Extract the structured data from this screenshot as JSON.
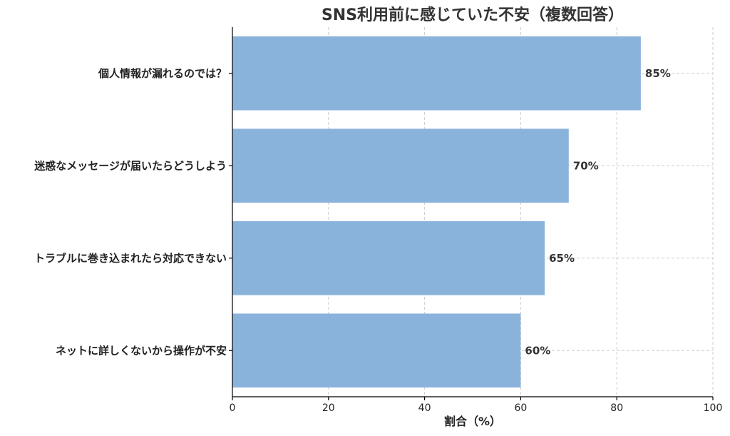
{
  "chart_data": {
    "type": "bar",
    "orientation": "horizontal",
    "title": "SNS利用前に感じていた不安（複数回答）",
    "xlabel": "割合（%）",
    "ylabel": "",
    "categories": [
      "個人情報が漏れるのでは？",
      "迷惑なメッセージが届いたらどうしよう",
      "トラブルに巻き込まれたら対応できない",
      "ネットに詳しくないから操作が不安"
    ],
    "values": [
      85,
      70,
      65,
      60
    ],
    "data_labels": [
      "85%",
      "70%",
      "65%",
      "60%"
    ],
    "xlim": [
      0,
      100
    ],
    "xticks": [
      0,
      20,
      40,
      60,
      80,
      100
    ],
    "grid": true,
    "bar_color": "#8ab3dc"
  }
}
